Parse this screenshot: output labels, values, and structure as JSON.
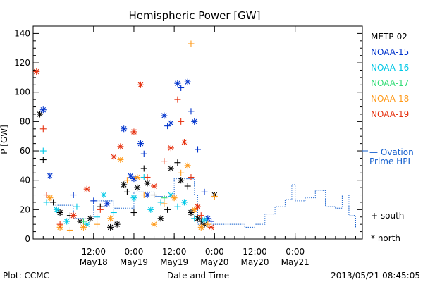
{
  "chart_data": {
    "type": "scatter",
    "title": "Hemispheric Power [GW]",
    "ylabel": "P [GW]",
    "xlabel": "Date and Time",
    "ylim": [
      0,
      145
    ],
    "xlim": [
      "2013-05-17T18:00",
      "2013-05-21T20:00"
    ],
    "yticks": [
      0,
      20,
      40,
      60,
      80,
      100,
      120,
      140
    ],
    "xticks": [
      {
        "t": "2013-05-18T12:00",
        "label1": "12:00",
        "label2": "May18"
      },
      {
        "t": "2013-05-19T00:00",
        "label1": "0:00",
        "label2": "May19"
      },
      {
        "t": "2013-05-19T12:00",
        "label1": "12:00",
        "label2": "May19"
      },
      {
        "t": "2013-05-20T00:00",
        "label1": "0:00",
        "label2": "May20"
      },
      {
        "t": "2013-05-20T12:00",
        "label1": "12:00",
        "label2": "May20"
      },
      {
        "t": "2013-05-21T00:00",
        "label1": "0:00",
        "label2": "May21"
      }
    ],
    "legend_position": "right",
    "marker_legend": {
      "plus": "south",
      "star": "north"
    },
    "series": [
      {
        "name": "METP-02",
        "color": "#000000",
        "points": [
          [
            "2013-05-17T20:00",
            85,
            "star"
          ],
          [
            "2013-05-17T21:00",
            54,
            "plus"
          ],
          [
            "2013-05-18T00:00",
            25,
            "plus"
          ],
          [
            "2013-05-18T02:00",
            18,
            "star"
          ],
          [
            "2013-05-18T05:00",
            16,
            "plus"
          ],
          [
            "2013-05-18T08:00",
            12,
            "star"
          ],
          [
            "2013-05-18T11:00",
            14,
            "star"
          ],
          [
            "2013-05-18T14:00",
            22,
            "plus"
          ],
          [
            "2013-05-18T17:00",
            8,
            "star"
          ],
          [
            "2013-05-18T19:00",
            10,
            "star"
          ],
          [
            "2013-05-18T21:00",
            37,
            "star"
          ],
          [
            "2013-05-18T22:00",
            32,
            "plus"
          ],
          [
            "2013-05-19T00:00",
            18,
            "plus"
          ],
          [
            "2013-05-19T01:00",
            35,
            "star"
          ],
          [
            "2013-05-19T03:00",
            48,
            "plus"
          ],
          [
            "2013-05-19T04:00",
            38,
            "star"
          ],
          [
            "2013-05-19T06:00",
            30,
            "plus"
          ],
          [
            "2013-05-19T08:00",
            14,
            "star"
          ],
          [
            "2013-05-19T10:00",
            20,
            "plus"
          ],
          [
            "2013-05-19T11:00",
            48,
            "star"
          ],
          [
            "2013-05-19T13:00",
            52,
            "plus"
          ],
          [
            "2013-05-19T14:00",
            40,
            "star"
          ],
          [
            "2013-05-19T16:00",
            36,
            "plus"
          ],
          [
            "2013-05-19T17:00",
            18,
            "star"
          ],
          [
            "2013-05-19T19:00",
            14,
            "star"
          ],
          [
            "2013-05-19T20:00",
            12,
            "plus"
          ],
          [
            "2013-05-19T21:00",
            10,
            "star"
          ],
          [
            "2013-05-20T00:00",
            30,
            "star"
          ]
        ]
      },
      {
        "name": "NOAA-15",
        "color": "#0033cc",
        "points": [
          [
            "2013-05-17T21:00",
            88,
            "star"
          ],
          [
            "2013-05-17T23:00",
            43,
            "star"
          ],
          [
            "2013-05-18T06:00",
            30,
            "plus"
          ],
          [
            "2013-05-18T12:00",
            26,
            "plus"
          ],
          [
            "2013-05-18T16:00",
            24,
            "star"
          ],
          [
            "2013-05-18T21:00",
            75,
            "star"
          ],
          [
            "2013-05-18T23:00",
            43,
            "star"
          ],
          [
            "2013-05-19T00:00",
            41,
            "star"
          ],
          [
            "2013-05-19T02:00",
            65,
            "star"
          ],
          [
            "2013-05-19T03:00",
            58,
            "plus"
          ],
          [
            "2013-05-19T04:00",
            30,
            "star"
          ],
          [
            "2013-05-19T09:00",
            84,
            "star"
          ],
          [
            "2013-05-19T10:00",
            77,
            "plus"
          ],
          [
            "2013-05-19T11:00",
            79,
            "star"
          ],
          [
            "2013-05-19T13:00",
            106,
            "star"
          ],
          [
            "2013-05-19T14:00",
            103,
            "plus"
          ],
          [
            "2013-05-19T16:00",
            107,
            "star"
          ],
          [
            "2013-05-19T17:00",
            87,
            "plus"
          ],
          [
            "2013-05-19T18:00",
            80,
            "star"
          ],
          [
            "2013-05-19T19:00",
            61,
            "plus"
          ],
          [
            "2013-05-19T21:00",
            32,
            "plus"
          ],
          [
            "2013-05-19T22:00",
            14,
            "star"
          ],
          [
            "2013-05-19T23:00",
            12,
            "plus"
          ]
        ]
      },
      {
        "name": "NOAA-16",
        "color": "#00c8e6",
        "points": [
          [
            "2013-05-17T21:00",
            60,
            "plus"
          ],
          [
            "2013-05-17T22:00",
            25,
            "plus"
          ],
          [
            "2013-05-18T01:00",
            20,
            "star"
          ],
          [
            "2013-05-18T04:00",
            12,
            "star"
          ],
          [
            "2013-05-18T07:00",
            22,
            "plus"
          ],
          [
            "2013-05-18T10:00",
            10,
            "star"
          ],
          [
            "2013-05-18T13:00",
            15,
            "plus"
          ],
          [
            "2013-05-18T15:00",
            30,
            "star"
          ],
          [
            "2013-05-18T18:00",
            18,
            "plus"
          ],
          [
            "2013-05-19T00:00",
            28,
            "star"
          ],
          [
            "2013-05-19T03:00",
            42,
            "plus"
          ],
          [
            "2013-05-19T05:00",
            20,
            "star"
          ],
          [
            "2013-05-19T08:00",
            25,
            "plus"
          ],
          [
            "2013-05-19T11:00",
            30,
            "star"
          ],
          [
            "2013-05-19T13:00",
            22,
            "plus"
          ],
          [
            "2013-05-19T15:00",
            25,
            "star"
          ],
          [
            "2013-05-19T18:00",
            14,
            "plus"
          ],
          [
            "2013-05-19T21:00",
            13,
            "star"
          ]
        ]
      },
      {
        "name": "NOAA-17",
        "color": "#33dd77",
        "points": [
          [
            "2013-05-18T09:00",
            12,
            "plus"
          ],
          [
            "2013-05-19T09:00",
            28,
            "plus"
          ]
        ]
      },
      {
        "name": "NOAA-18",
        "color": "#ff9a1a",
        "points": [
          [
            "2013-05-17T23:00",
            28,
            "star"
          ],
          [
            "2013-05-18T02:00",
            8,
            "star"
          ],
          [
            "2013-05-18T05:00",
            6,
            "plus"
          ],
          [
            "2013-05-18T09:00",
            8,
            "star"
          ],
          [
            "2013-05-18T13:00",
            10,
            "plus"
          ],
          [
            "2013-05-18T17:00",
            14,
            "star"
          ],
          [
            "2013-05-18T20:00",
            54,
            "star"
          ],
          [
            "2013-05-18T22:00",
            40,
            "plus"
          ],
          [
            "2013-05-19T01:00",
            42,
            "star"
          ],
          [
            "2013-05-19T03:00",
            30,
            "plus"
          ],
          [
            "2013-05-19T06:00",
            10,
            "star"
          ],
          [
            "2013-05-19T09:00",
            24,
            "plus"
          ],
          [
            "2013-05-19T12:00",
            28,
            "star"
          ],
          [
            "2013-05-19T14:00",
            45,
            "plus"
          ],
          [
            "2013-05-19T16:00",
            50,
            "star"
          ],
          [
            "2013-05-19T17:00",
            133,
            "plus"
          ],
          [
            "2013-05-19T18:00",
            20,
            "star"
          ],
          [
            "2013-05-19T20:00",
            8,
            "star"
          ],
          [
            "2013-05-19T22:00",
            10,
            "plus"
          ],
          [
            "2013-05-20T00:00",
            29,
            "plus"
          ]
        ]
      },
      {
        "name": "NOAA-19",
        "color": "#e63210",
        "points": [
          [
            "2013-05-17T19:00",
            114,
            "star"
          ],
          [
            "2013-05-17T21:00",
            75,
            "plus"
          ],
          [
            "2013-05-17T22:00",
            30,
            "plus"
          ],
          [
            "2013-05-18T02:00",
            10,
            "plus"
          ],
          [
            "2013-05-18T06:00",
            16,
            "star"
          ],
          [
            "2013-05-18T10:00",
            34,
            "star"
          ],
          [
            "2013-05-18T14:00",
            20,
            "plus"
          ],
          [
            "2013-05-18T18:00",
            56,
            "star"
          ],
          [
            "2013-05-18T20:00",
            63,
            "star"
          ],
          [
            "2013-05-19T00:00",
            73,
            "star"
          ],
          [
            "2013-05-19T02:00",
            105,
            "star"
          ],
          [
            "2013-05-19T04:00",
            42,
            "plus"
          ],
          [
            "2013-05-19T06:00",
            36,
            "star"
          ],
          [
            "2013-05-19T09:00",
            53,
            "plus"
          ],
          [
            "2013-05-19T11:00",
            62,
            "star"
          ],
          [
            "2013-05-19T13:00",
            95,
            "plus"
          ],
          [
            "2013-05-19T14:00",
            80,
            "plus"
          ],
          [
            "2013-05-19T15:00",
            66,
            "star"
          ],
          [
            "2013-05-19T17:00",
            42,
            "plus"
          ],
          [
            "2013-05-19T19:00",
            22,
            "star"
          ],
          [
            "2013-05-19T20:00",
            16,
            "plus"
          ],
          [
            "2013-05-19T23:00",
            8,
            "star"
          ]
        ]
      }
    ],
    "ovation": {
      "name": "Ovation Prime HPI",
      "label_line1": "— Ovation",
      "label_line2": "Prime HPI",
      "color": "#1560ce",
      "dash": true,
      "points": [
        [
          "2013-05-18T00:00",
          23
        ],
        [
          "2013-05-18T06:00",
          14
        ],
        [
          "2013-05-18T12:00",
          26
        ],
        [
          "2013-05-18T18:00",
          21
        ],
        [
          "2013-05-19T00:00",
          32
        ],
        [
          "2013-05-19T06:00",
          29
        ],
        [
          "2013-05-19T12:00",
          41
        ],
        [
          "2013-05-19T18:00",
          30
        ],
        [
          "2013-05-19T19:00",
          10
        ],
        [
          "2013-05-20T00:00",
          10
        ],
        [
          "2013-05-20T06:00",
          10
        ],
        [
          "2013-05-20T09:00",
          8
        ],
        [
          "2013-05-20T12:00",
          10
        ],
        [
          "2013-05-20T15:00",
          17
        ],
        [
          "2013-05-20T18:00",
          22
        ],
        [
          "2013-05-20T21:00",
          27
        ],
        [
          "2013-05-20T23:00",
          37
        ],
        [
          "2013-05-21T00:00",
          26
        ],
        [
          "2013-05-21T03:00",
          28
        ],
        [
          "2013-05-21T06:00",
          33
        ],
        [
          "2013-05-21T09:00",
          22
        ],
        [
          "2013-05-21T12:00",
          21
        ],
        [
          "2013-05-21T14:00",
          30
        ],
        [
          "2013-05-21T16:00",
          16
        ],
        [
          "2013-05-21T18:00",
          8
        ]
      ]
    }
  },
  "footer": {
    "left": "Plot: CCMC",
    "center": "Date and Time",
    "right": "2013/05/21 08:45:05"
  },
  "legend": {
    "south": "+ south",
    "north": "* north"
  }
}
